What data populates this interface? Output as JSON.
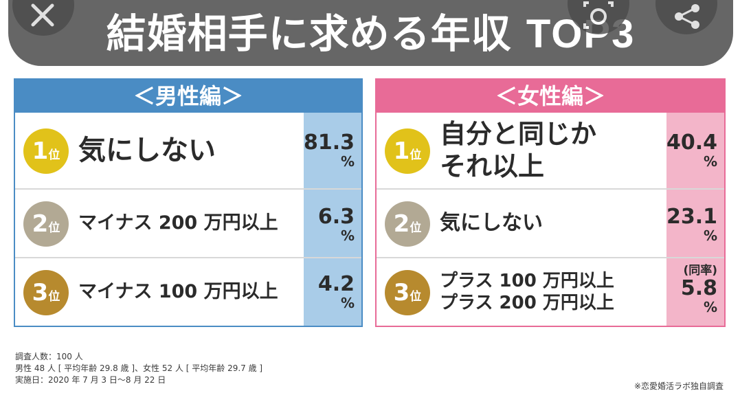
{
  "title": {
    "main": "結婚相手に求める年収",
    "latin": "TOP3"
  },
  "colors": {
    "male": "#4a8cc4",
    "female": "#e86b97",
    "title_bg": "#666666"
  },
  "icons": {
    "close": "close-icon",
    "lens": "lens-search-icon",
    "share": "share-icon"
  },
  "rank_suffix": "位",
  "unit": "%",
  "chart_data": {
    "type": "table",
    "title": "結婚相手に求める年収 TOP3",
    "groups": [
      {
        "name": "＜男性編＞",
        "rows": [
          {
            "rank": "1",
            "label": "気にしない",
            "value": 81.3,
            "value_text": "81.3"
          },
          {
            "rank": "2",
            "label": "マイナス 200 万円以上",
            "value": 6.3,
            "value_text": "6.3"
          },
          {
            "rank": "3",
            "label": "マイナス 100 万円以上",
            "value": 4.2,
            "value_text": "4.2"
          }
        ]
      },
      {
        "name": "＜女性編＞",
        "rows": [
          {
            "rank": "1",
            "label_lines": [
              "自分と同じか",
              "それ以上"
            ],
            "value": 40.4,
            "value_text": "40.4"
          },
          {
            "rank": "2",
            "label": "気にしない",
            "value": 23.1,
            "value_text": "23.1"
          },
          {
            "rank": "3",
            "label_lines": [
              "プラス 100 万円以上",
              "プラス 200 万円以上"
            ],
            "note": "(同率)",
            "value": 5.8,
            "value_text": "5.8"
          }
        ]
      }
    ]
  },
  "footer": {
    "lines": [
      "調査人数：100 人",
      "男性 48 人 [ 平均年齢 29.8 歳 ]、女性 52 人 [ 平均年齢 29.7 歳 ]",
      "実施日：2020 年 7 月 3 日〜8 月 22 日"
    ],
    "source": "※恋愛婚活ラボ独自調査"
  }
}
